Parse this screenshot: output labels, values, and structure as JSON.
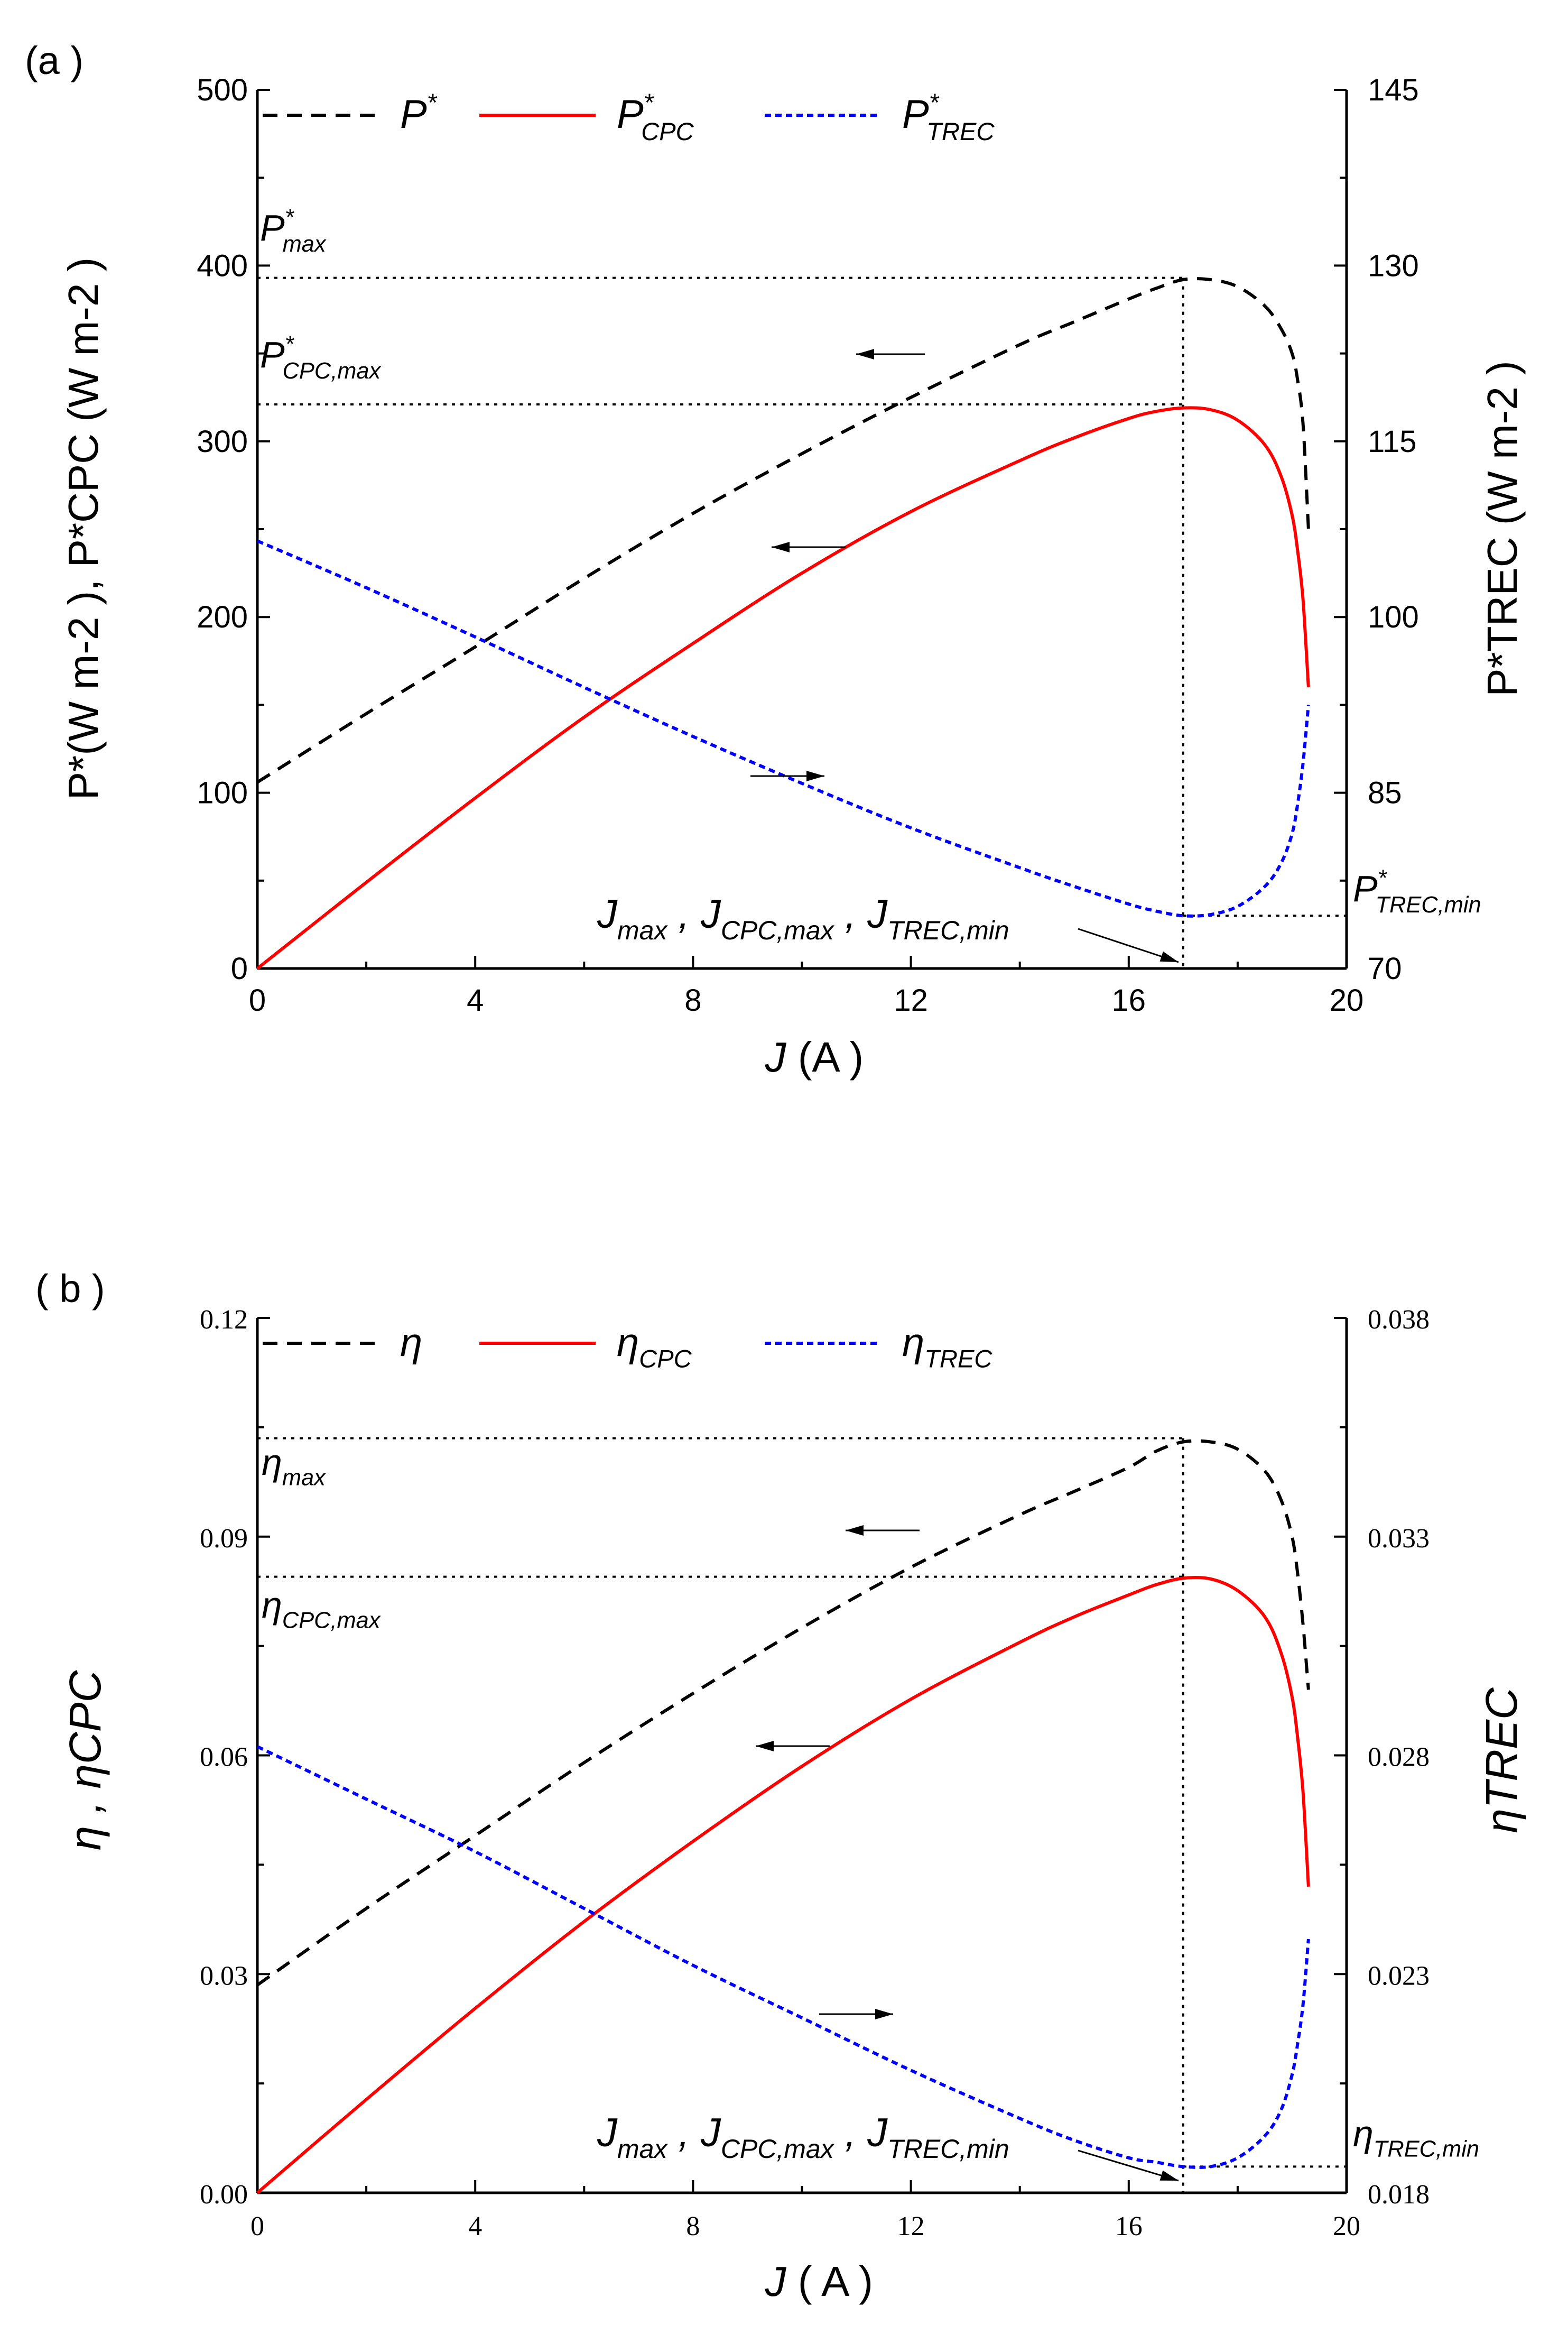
{
  "chart_data": [
    {
      "panel_label": "(a )",
      "type": "line",
      "xlabel": "J",
      "xunit": "(A )",
      "xlim": [
        0,
        20
      ],
      "xticks": [
        "0",
        "4",
        "8",
        "12",
        "16",
        "20"
      ],
      "ylim_left": [
        0,
        500
      ],
      "yticks_left": [
        "0",
        "100",
        "200",
        "300",
        "400",
        "500"
      ],
      "ylabel_left": "P*(W m-2 ), P*CPC (W m-2 )",
      "ylim_right": [
        70,
        145
      ],
      "yticks_right": [
        "70",
        "85",
        "100",
        "115",
        "130",
        "145"
      ],
      "ylabel_right": "P*TREC (W m-2 )",
      "legend": [
        {
          "label": "P",
          "sup": "*",
          "sub": ""
        },
        {
          "label": "P",
          "sup": "*",
          "sub": "CPC"
        },
        {
          "label": "P",
          "sup": "*",
          "sub": "TREC"
        }
      ],
      "series": [
        {
          "name": "P*",
          "axis": "left",
          "style": "dashed",
          "color": "#000000",
          "x": [
            0,
            2,
            4,
            6,
            8,
            10,
            12,
            14,
            15,
            16,
            16.5,
            17,
            17.5,
            18,
            18.5,
            18.8,
            19,
            19.1,
            19.2,
            19.3
          ],
          "y": [
            106,
            145,
            183,
            222,
            259,
            293,
            325,
            355,
            368,
            381,
            387,
            392,
            392,
            388,
            377,
            364,
            350,
            335,
            310,
            250
          ]
        },
        {
          "name": "P*CPC",
          "axis": "left",
          "style": "solid",
          "color": "#ff0000",
          "x": [
            0,
            2,
            4,
            6,
            8,
            10,
            12,
            14,
            15,
            16,
            16.5,
            17,
            17.5,
            18,
            18.5,
            18.8,
            19,
            19.1,
            19.2,
            19.3
          ],
          "y": [
            0,
            49,
            97,
            143,
            185,
            225,
            260,
            289,
            302,
            313,
            317,
            319,
            318,
            312,
            298,
            280,
            258,
            238,
            210,
            160
          ]
        },
        {
          "name": "P*TREC",
          "axis": "right",
          "style": "short-dashed",
          "color": "#0000ff",
          "x": [
            0,
            2,
            4,
            6,
            8,
            10,
            12,
            14,
            15,
            16,
            16.5,
            17,
            17.5,
            18,
            18.5,
            18.8,
            19,
            19.1,
            19.2,
            19.3
          ],
          "y": [
            106.5,
            102.5,
            98.3,
            94.0,
            89.8,
            85.8,
            82.0,
            78.6,
            77.0,
            75.5,
            74.9,
            74.5,
            74.6,
            75.3,
            77.0,
            79.0,
            81.5,
            84.0,
            87.5,
            92.5
          ]
        }
      ],
      "guides": {
        "j_opt": 17,
        "p_max": 393,
        "p_cpc_max": 321,
        "p_trec_min": 74.5
      },
      "annotations": {
        "p_max": {
          "base": "P",
          "sup": "*",
          "sub": "max"
        },
        "p_cpc_max": {
          "base": "P",
          "sup": "*",
          "sub": "CPC,max"
        },
        "p_trec_min": {
          "base": "P",
          "sup": "*",
          "sub": "TREC,min"
        },
        "j_labels": [
          {
            "base": "J",
            "sub": "max",
            "sep": " ,"
          },
          {
            "base": "J",
            "sub": "CPC,max",
            "sep": " ,"
          },
          {
            "base": "J",
            "sub": "TREC,min",
            "sep": ""
          }
        ]
      }
    },
    {
      "panel_label": "( b )",
      "type": "line",
      "xlabel": "J",
      "xunit": "( A )",
      "xlim": [
        0,
        20
      ],
      "xticks": [
        "0",
        "4",
        "8",
        "12",
        "16",
        "20"
      ],
      "ylim_left": [
        0,
        0.12
      ],
      "yticks_left": [
        "0.00",
        "0.03",
        "0.06",
        "0.09",
        "0.12"
      ],
      "ylabel_left": "η ,   ηCPC",
      "ylim_right": [
        0.018,
        0.038
      ],
      "yticks_right": [
        "0.018",
        "0.023",
        "0.028",
        "0.033",
        "0.038"
      ],
      "ylabel_right": "ηTREC",
      "legend": [
        {
          "label": "η",
          "sub": ""
        },
        {
          "label": "η",
          "sub": "CPC"
        },
        {
          "label": "η",
          "sub": "TREC"
        }
      ],
      "series": [
        {
          "name": "η",
          "axis": "left",
          "style": "dashed",
          "color": "#000000",
          "x": [
            0,
            2,
            4,
            6,
            8,
            10,
            12,
            14,
            15,
            16,
            16.5,
            17,
            17.5,
            18,
            18.5,
            18.8,
            19,
            19.1,
            19.2,
            19.3
          ],
          "y": [
            0.0285,
            0.039,
            0.049,
            0.059,
            0.0685,
            0.0775,
            0.0858,
            0.093,
            0.0962,
            0.0995,
            0.1017,
            0.103,
            0.103,
            0.102,
            0.099,
            0.095,
            0.09,
            0.085,
            0.078,
            0.069
          ]
        },
        {
          "name": "ηCPC",
          "axis": "left",
          "style": "solid",
          "color": "#ff0000",
          "x": [
            0,
            2,
            4,
            6,
            8,
            10,
            12,
            14,
            15,
            16,
            16.5,
            17,
            17.5,
            18,
            18.5,
            18.8,
            19,
            19.1,
            19.2,
            19.3
          ],
          "y": [
            0.0,
            0.0128,
            0.0253,
            0.0372,
            0.0482,
            0.0585,
            0.0677,
            0.0755,
            0.079,
            0.082,
            0.0834,
            0.0843,
            0.0842,
            0.0826,
            0.079,
            0.074,
            0.068,
            0.0625,
            0.055,
            0.042
          ]
        },
        {
          "name": "ηTREC",
          "axis": "right",
          "style": "short-dashed",
          "color": "#0000ff",
          "x": [
            0,
            2,
            4,
            6,
            8,
            10,
            12,
            14,
            15,
            16,
            16.5,
            17,
            17.5,
            18,
            18.5,
            18.8,
            19,
            19.1,
            19.2,
            19.3
          ],
          "y": [
            0.0282,
            0.027,
            0.0258,
            0.0245,
            0.0232,
            0.022,
            0.0208,
            0.0197,
            0.0192,
            0.0188,
            0.0187,
            0.0186,
            0.0186,
            0.0188,
            0.0193,
            0.0199,
            0.0207,
            0.0214,
            0.0223,
            0.0238
          ]
        }
      ],
      "guides": {
        "j_opt": 17,
        "eta_max": 0.1035,
        "eta_cpc_max": 0.0845,
        "eta_trec_min": 0.0186
      },
      "annotations": {
        "eta_max": {
          "base": "η",
          "sub": "max"
        },
        "eta_cpc_max": {
          "base": "η",
          "sub": "CPC,max"
        },
        "eta_trec_min": {
          "base": "η",
          "sub": "TREC,min"
        },
        "j_labels": [
          {
            "base": "J",
            "sub": "max",
            "sep": " ,"
          },
          {
            "base": "J",
            "sub": "CPC,max",
            "sep": " ,"
          },
          {
            "base": "J",
            "sub": "TREC,min",
            "sep": ""
          }
        ]
      }
    }
  ]
}
